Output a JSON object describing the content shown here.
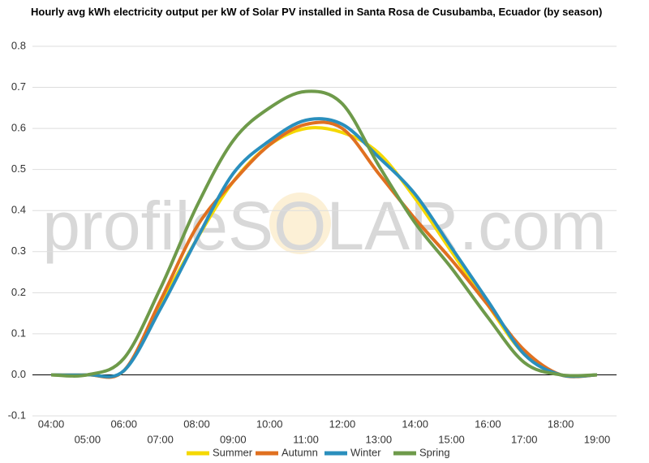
{
  "chart_data": {
    "type": "line",
    "title": "Hourly avg kWh electricity output per kW of Solar PV installed in Santa Rosa de Cusubamba, Ecuador (by season)",
    "watermark": "profileSOLAR.com",
    "categories": [
      "04:00",
      "05:00",
      "06:00",
      "07:00",
      "08:00",
      "09:00",
      "10:00",
      "11:00",
      "12:00",
      "13:00",
      "14:00",
      "15:00",
      "16:00",
      "17:00",
      "18:00",
      "19:00"
    ],
    "series": [
      {
        "name": "Summer",
        "color": "#f5d800",
        "values": [
          0,
          0,
          0.01,
          0.17,
          0.33,
          0.47,
          0.56,
          0.6,
          0.59,
          0.54,
          0.43,
          0.3,
          0.17,
          0.05,
          0,
          0
        ]
      },
      {
        "name": "Autumn",
        "color": "#e07020",
        "values": [
          0,
          0,
          0.01,
          0.18,
          0.36,
          0.47,
          0.56,
          0.61,
          0.6,
          0.49,
          0.38,
          0.28,
          0.17,
          0.06,
          0,
          0
        ]
      },
      {
        "name": "Winter",
        "color": "#2a8fbd",
        "values": [
          0,
          0,
          0.01,
          0.16,
          0.33,
          0.49,
          0.57,
          0.62,
          0.61,
          0.53,
          0.44,
          0.31,
          0.18,
          0.05,
          0,
          0
        ]
      },
      {
        "name": "Spring",
        "color": "#6e9a4a",
        "values": [
          0,
          0,
          0.04,
          0.21,
          0.41,
          0.57,
          0.65,
          0.69,
          0.66,
          0.51,
          0.37,
          0.26,
          0.14,
          0.03,
          0,
          0
        ]
      }
    ],
    "ylim": [
      -0.1,
      0.8
    ],
    "yticks": [
      -0.1,
      {
        "value": 0,
        "label": "0.0"
      },
      0.1,
      0.2,
      0.3,
      0.4,
      0.5,
      0.6,
      0.7,
      0.8
    ],
    "grid": true,
    "legend": "bottom"
  }
}
